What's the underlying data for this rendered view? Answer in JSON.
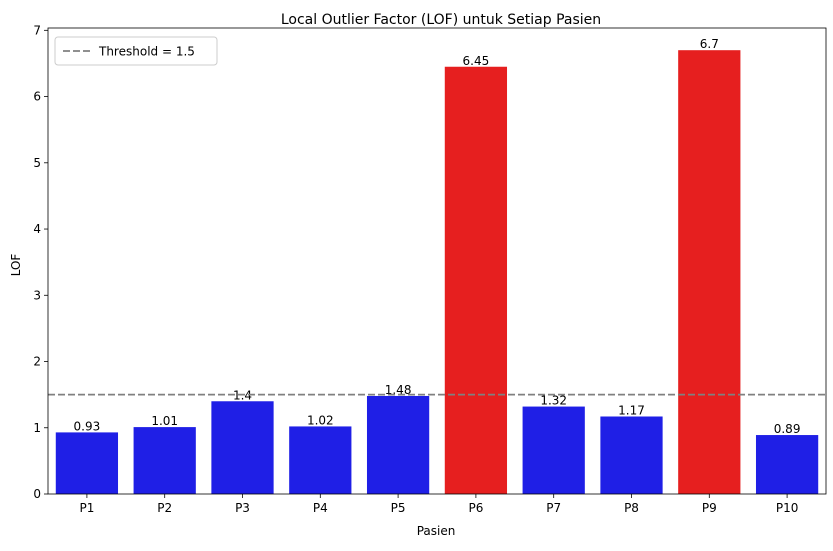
{
  "chart_data": {
    "type": "bar",
    "title": "Local Outlier Factor (LOF) untuk Setiap Pasien",
    "xlabel": "Pasien",
    "ylabel": "LOF",
    "categories": [
      "P1",
      "P2",
      "P3",
      "P4",
      "P5",
      "P6",
      "P7",
      "P8",
      "P9",
      "P10"
    ],
    "values": [
      0.93,
      1.01,
      1.4,
      1.02,
      1.48,
      6.45,
      1.32,
      1.17,
      6.7,
      0.89
    ],
    "value_labels": [
      "0.93",
      "1.01",
      "1.4",
      "1.02",
      "1.48",
      "6.45",
      "1.32",
      "1.17",
      "6.7",
      "0.89"
    ],
    "ylim": [
      0,
      7.035
    ],
    "yticks": [
      0,
      1,
      2,
      3,
      4,
      5,
      6,
      7
    ],
    "threshold": {
      "value": 1.5,
      "label": "Threshold = 1.5",
      "color": "#808080",
      "style": "dashed"
    },
    "colors": {
      "normal": "#1f1fe6",
      "outlier": "#e61f1f"
    },
    "legend": {
      "placement": "top-left",
      "entries": [
        "Threshold = 1.5"
      ]
    },
    "grid": false
  }
}
